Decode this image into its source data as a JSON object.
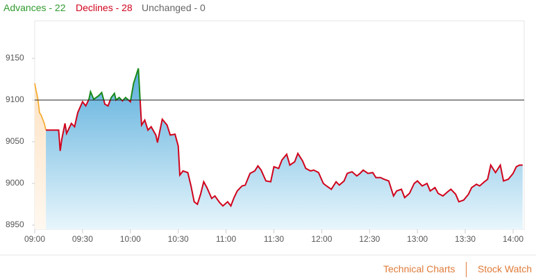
{
  "header": {
    "advances": "Advances - 22",
    "declines": "Declines - 28",
    "unchanged": "Unchanged - 0"
  },
  "footer": {
    "links": [
      "Technical Charts",
      "Stock Watch"
    ]
  },
  "chart_data": {
    "type": "line",
    "xlim": [
      "09:00",
      "14:07"
    ],
    "xticks": [
      "09:00",
      "09:30",
      "10:00",
      "10:30",
      "11:00",
      "11:30",
      "12:00",
      "12:30",
      "13:00",
      "13:30",
      "14:00"
    ],
    "ylim": [
      8945,
      9195
    ],
    "yticks": [
      8950,
      9000,
      9050,
      9100,
      9150
    ],
    "reference_line": 9100,
    "reference_color": "#222222",
    "series": [
      {
        "color": "#f5a623",
        "fill": "#fde3c4",
        "x": [
          "09:00",
          "09:02",
          "09:03",
          "09:04",
          "09:06",
          "09:07"
        ],
        "values": [
          9120,
          9101,
          9085,
          9082,
          9072,
          9064
        ]
      },
      {
        "color": "#d0021b",
        "above_color": "#1a8a1a",
        "fill": "#5aaedc",
        "x": [
          "09:07",
          "09:15",
          "09:16",
          "09:17",
          "09:19",
          "09:20",
          "09:23",
          "09:25",
          "09:27",
          "09:30",
          "09:32",
          "09:34",
          "09:35",
          "09:37",
          "09:40",
          "09:42",
          "09:44",
          "09:46",
          "09:48",
          "09:50",
          "09:51",
          "09:53",
          "09:55",
          "09:57",
          "10:00",
          "10:02",
          "10:05",
          "10:06",
          "10:07",
          "10:09",
          "10:11",
          "10:13",
          "10:16",
          "10:17",
          "10:20",
          "10:23",
          "10:25",
          "10:28",
          "10:30",
          "10:31",
          "10:33",
          "10:36",
          "10:38",
          "10:40",
          "10:42",
          "10:44",
          "10:46",
          "10:48",
          "10:51",
          "10:53",
          "10:56",
          "10:58",
          "11:01",
          "11:03",
          "11:05",
          "11:07",
          "11:10",
          "11:12",
          "11:15",
          "11:18",
          "11:20",
          "11:22",
          "11:25",
          "11:28",
          "11:30",
          "11:33",
          "11:35",
          "11:38",
          "11:40",
          "11:43",
          "11:45",
          "11:48",
          "11:50",
          "11:53",
          "11:55",
          "11:58",
          "12:01",
          "12:03",
          "12:06",
          "12:09",
          "12:11",
          "12:14",
          "12:16",
          "12:19",
          "12:22",
          "12:24",
          "12:26",
          "12:29",
          "12:32",
          "12:34",
          "12:37",
          "12:39",
          "12:42",
          "12:45",
          "12:47",
          "12:50",
          "12:52",
          "12:55",
          "12:58",
          "13:00",
          "13:03",
          "13:06",
          "13:08",
          "13:11",
          "13:13",
          "13:16",
          "13:19",
          "13:21",
          "13:24",
          "13:26",
          "13:29",
          "13:32",
          "13:34",
          "13:37",
          "13:39",
          "13:42",
          "13:44",
          "13:46",
          "13:49",
          "13:52",
          "13:54",
          "13:57",
          "14:00",
          "14:02",
          "14:04",
          "14:06"
        ],
        "values": [
          9064,
          9064,
          9039,
          9053,
          9072,
          9060,
          9072,
          9068,
          9085,
          9098,
          9093,
          9101,
          9110,
          9101,
          9105,
          9109,
          9095,
          9093,
          9103,
          9108,
          9100,
          9103,
          9099,
          9103,
          9098,
          9120,
          9138,
          9103,
          9070,
          9076,
          9064,
          9068,
          9058,
          9049,
          9077,
          9070,
          9058,
          9059,
          9045,
          9010,
          9015,
          9013,
          8997,
          8978,
          8975,
          8987,
          9002,
          8995,
          8982,
          8985,
          8977,
          8973,
          8978,
          8973,
          8983,
          8991,
          8997,
          8998,
          9012,
          9015,
          9021,
          9016,
          9003,
          9002,
          9020,
          9018,
          9028,
          9035,
          9022,
          9026,
          9036,
          9027,
          9018,
          9015,
          9016,
          9013,
          9000,
          8997,
          8993,
          9002,
          8998,
          9003,
          9012,
          9014,
          9009,
          9012,
          9016,
          9012,
          9013,
          9007,
          9007,
          9005,
          9003,
          8985,
          8991,
          8993,
          8983,
          8988,
          9000,
          9003,
          8997,
          9000,
          8991,
          8995,
          8988,
          8985,
          8990,
          8993,
          8987,
          8978,
          8980,
          8987,
          8995,
          8999,
          8997,
          9002,
          9005,
          9022,
          9013,
          9022,
          9003,
          9005,
          9012,
          9020,
          9022,
          9022
        ]
      }
    ]
  }
}
